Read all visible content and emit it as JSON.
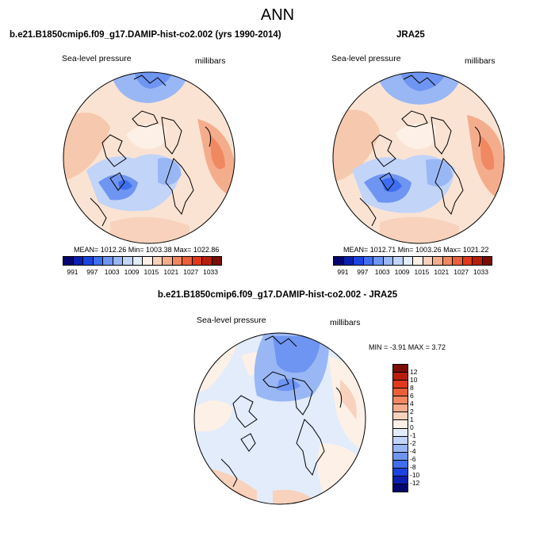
{
  "title": "ANN",
  "panels": {
    "model": {
      "title": "b.e21.B1850cmip6.f09_g17.DAMIP-hist-co2.002 (yrs 1990-2014)",
      "variable": "Sea-level pressure",
      "units": "millibars",
      "stats": "MEAN= 1012.26   Min= 1003.38   Max= 1022.86"
    },
    "obs": {
      "title": "JRA25",
      "variable": "Sea-level pressure",
      "units": "millibars",
      "stats": "MEAN= 1012.71   Min= 1003.26   Max= 1021.22"
    },
    "diff": {
      "title": "b.e21.B1850cmip6.f09_g17.DAMIP-hist-co2.002 - JRA25",
      "variable": "Sea-level pressure",
      "units": "millibars",
      "stats": "MIN =  -3.91 MAX =   3.72"
    }
  },
  "colorbars": {
    "absolute": {
      "labels": [
        "991",
        "997",
        "1003",
        "1009",
        "1015",
        "1021",
        "1027",
        "1033"
      ],
      "colors": [
        "#05056e",
        "#0a1fb0",
        "#1a44e0",
        "#3f6fef",
        "#6f95f2",
        "#9ab7f5",
        "#c2d4f8",
        "#e2ecfb",
        "#fdf0e6",
        "#f8d2bc",
        "#f4ad8c",
        "#f08862",
        "#eb6038",
        "#e13a1a",
        "#b81e0c",
        "#7a0d05"
      ]
    },
    "difference": {
      "labels": [
        "12",
        "10",
        "8",
        "6",
        "4",
        "2",
        "1",
        "0",
        "-1",
        "-2",
        "-4",
        "-6",
        "-8",
        "-10",
        "-12"
      ],
      "colors": [
        "#7a0d05",
        "#b81e0c",
        "#e13a1a",
        "#eb6038",
        "#f08862",
        "#f4ad8c",
        "#f8d2bc",
        "#fdf0e6",
        "#e2ecfb",
        "#c2d4f8",
        "#9ab7f5",
        "#6f95f2",
        "#3f6fef",
        "#1a44e0",
        "#0a1fb0",
        "#05056e"
      ]
    }
  }
}
